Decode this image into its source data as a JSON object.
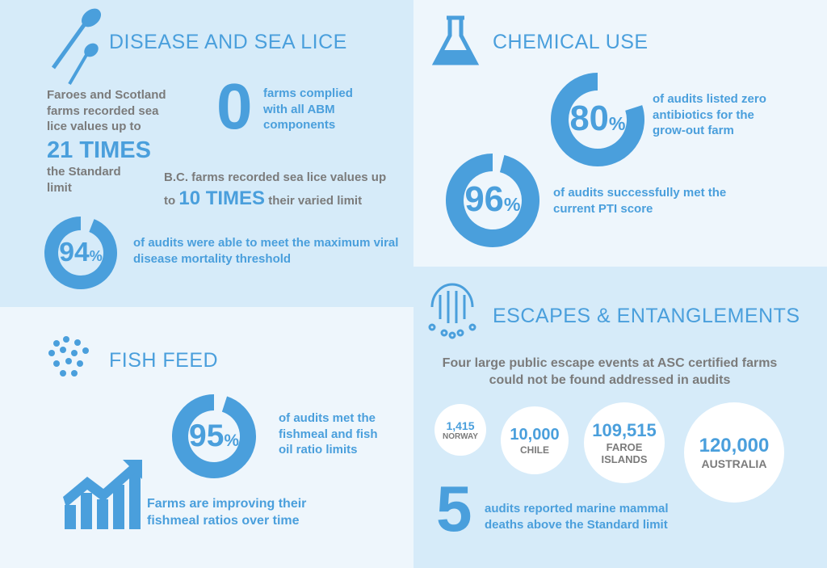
{
  "disease": {
    "title": "DISEASE AND SEA LICE",
    "faroes": {
      "text_before": "Faroes and Scotland farms recorded sea lice values up to",
      "highlight": "21 TIMES",
      "text_after": "the Standard limit"
    },
    "zero": {
      "value": "0",
      "text": "farms complied with all ABM components"
    },
    "bc": {
      "text_before": "B.C. farms recorded sea lice values up to",
      "highlight": "10 TIMES",
      "text_after": "their varied limit"
    },
    "ring": {
      "value": 94,
      "unit": "%",
      "text": "of audits were able to meet the maximum viral disease mortality threshold"
    }
  },
  "chemical": {
    "title": "CHEMICAL USE",
    "rings": [
      {
        "value": 80,
        "unit": "%",
        "text": "of audits listed zero antibiotics for the grow-out farm"
      },
      {
        "value": 96,
        "unit": "%",
        "text": "of audits successfully met the current PTI score"
      }
    ]
  },
  "feed": {
    "title": "FISH FEED",
    "ring": {
      "value": 95,
      "unit": "%",
      "text": "of audits met the fishmeal and fish oil ratio limits"
    },
    "trend_text": "Farms are improving their fishmeal ratios over time"
  },
  "escapes": {
    "title": "ESCAPES & ENTANGLEMENTS",
    "intro": "Four large public escape events at ASC certified farms could not be found addressed in audits",
    "events": [
      {
        "count": "1,415",
        "location": "NORWAY"
      },
      {
        "count": "10,000",
        "location": "CHILE"
      },
      {
        "count": "109,515",
        "location": "FAROE ISLANDS"
      },
      {
        "count": "120,000",
        "location": "AUSTRALIA"
      }
    ],
    "mammals": {
      "value": "5",
      "text": "audits reported marine mammal deaths above the Standard limit"
    }
  }
}
